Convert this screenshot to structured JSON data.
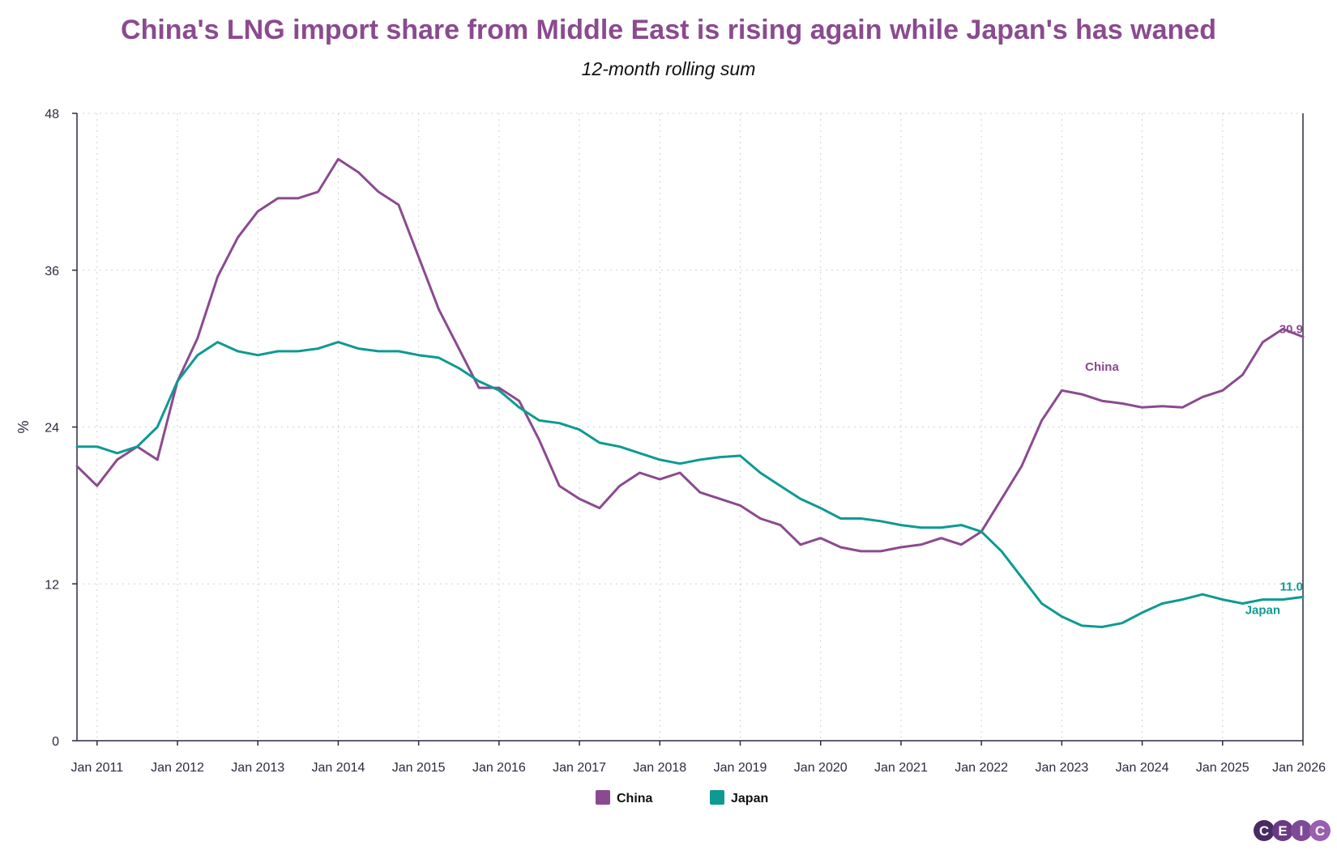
{
  "chart_data": {
    "type": "line",
    "title": "China's LNG import share from Middle East is rising again while Japan's has waned",
    "subtitle": "12-month rolling sum",
    "ylabel": "%",
    "xlabel": "",
    "ylim": [
      0,
      48
    ],
    "yticks": [
      0,
      12,
      24,
      36,
      48
    ],
    "xlim": [
      "2010-10",
      "2026-01"
    ],
    "x_tick_labels": [
      "Jan 2011",
      "Jan 2012",
      "Jan 2013",
      "Jan 2014",
      "Jan 2015",
      "Jan 2016",
      "Jan 2017",
      "Jan 2018",
      "Jan 2019",
      "Jan 2020",
      "Jan 2021",
      "Jan 2022",
      "Jan 2023",
      "Jan 2024",
      "Jan 2025",
      "Jan 2026"
    ],
    "grid": true,
    "legend_position": "bottom-center",
    "series": [
      {
        "name": "China",
        "color": "#8b4a8f",
        "inline_label": "China",
        "last_value_label": "30.9",
        "points": [
          [
            "2010-10",
            21.0
          ],
          [
            "2011-01",
            19.5
          ],
          [
            "2011-04",
            21.5
          ],
          [
            "2011-07",
            22.5
          ],
          [
            "2011-10",
            21.5
          ],
          [
            "2012-01",
            27.5
          ],
          [
            "2012-04",
            30.8
          ],
          [
            "2012-07",
            35.5
          ],
          [
            "2012-10",
            38.5
          ],
          [
            "2013-01",
            40.5
          ],
          [
            "2013-04",
            41.5
          ],
          [
            "2013-07",
            41.5
          ],
          [
            "2013-10",
            42.0
          ],
          [
            "2014-01",
            44.5
          ],
          [
            "2014-04",
            43.5
          ],
          [
            "2014-07",
            42.0
          ],
          [
            "2014-10",
            41.0
          ],
          [
            "2015-01",
            37.0
          ],
          [
            "2015-04",
            33.0
          ],
          [
            "2015-07",
            30.0
          ],
          [
            "2015-10",
            27.0
          ],
          [
            "2016-01",
            27.0
          ],
          [
            "2016-04",
            26.0
          ],
          [
            "2016-07",
            23.0
          ],
          [
            "2016-10",
            19.5
          ],
          [
            "2017-01",
            18.5
          ],
          [
            "2017-04",
            17.8
          ],
          [
            "2017-07",
            19.5
          ],
          [
            "2017-10",
            20.5
          ],
          [
            "2018-01",
            20.0
          ],
          [
            "2018-04",
            20.5
          ],
          [
            "2018-07",
            19.0
          ],
          [
            "2018-10",
            18.5
          ],
          [
            "2019-01",
            18.0
          ],
          [
            "2019-04",
            17.0
          ],
          [
            "2019-07",
            16.5
          ],
          [
            "2019-10",
            15.0
          ],
          [
            "2020-01",
            15.5
          ],
          [
            "2020-04",
            14.8
          ],
          [
            "2020-07",
            14.5
          ],
          [
            "2020-10",
            14.5
          ],
          [
            "2021-01",
            14.8
          ],
          [
            "2021-04",
            15.0
          ],
          [
            "2021-07",
            15.5
          ],
          [
            "2021-10",
            15.0
          ],
          [
            "2022-01",
            16.0
          ],
          [
            "2022-04",
            18.5
          ],
          [
            "2022-07",
            21.0
          ],
          [
            "2022-10",
            24.5
          ],
          [
            "2023-01",
            26.8
          ],
          [
            "2023-04",
            26.5
          ],
          [
            "2023-07",
            26.0
          ],
          [
            "2023-10",
            25.8
          ],
          [
            "2024-01",
            25.5
          ],
          [
            "2024-04",
            25.6
          ],
          [
            "2024-07",
            25.5
          ],
          [
            "2024-10",
            26.3
          ],
          [
            "2025-01",
            26.8
          ],
          [
            "2025-04",
            28.0
          ],
          [
            "2025-07",
            30.5
          ],
          [
            "2025-10",
            31.5
          ],
          [
            "2026-01",
            30.9
          ]
        ]
      },
      {
        "name": "Japan",
        "color": "#0d9a93",
        "inline_label": "Japan",
        "last_value_label": "11.0",
        "points": [
          [
            "2010-10",
            22.5
          ],
          [
            "2011-01",
            22.5
          ],
          [
            "2011-04",
            22.0
          ],
          [
            "2011-07",
            22.5
          ],
          [
            "2011-10",
            24.0
          ],
          [
            "2012-01",
            27.5
          ],
          [
            "2012-04",
            29.5
          ],
          [
            "2012-07",
            30.5
          ],
          [
            "2012-10",
            29.8
          ],
          [
            "2013-01",
            29.5
          ],
          [
            "2013-04",
            29.8
          ],
          [
            "2013-07",
            29.8
          ],
          [
            "2013-10",
            30.0
          ],
          [
            "2014-01",
            30.5
          ],
          [
            "2014-04",
            30.0
          ],
          [
            "2014-07",
            29.8
          ],
          [
            "2014-10",
            29.8
          ],
          [
            "2015-01",
            29.5
          ],
          [
            "2015-04",
            29.3
          ],
          [
            "2015-07",
            28.5
          ],
          [
            "2015-10",
            27.5
          ],
          [
            "2016-01",
            26.8
          ],
          [
            "2016-04",
            25.5
          ],
          [
            "2016-07",
            24.5
          ],
          [
            "2016-10",
            24.3
          ],
          [
            "2017-01",
            23.8
          ],
          [
            "2017-04",
            22.8
          ],
          [
            "2017-07",
            22.5
          ],
          [
            "2017-10",
            22.0
          ],
          [
            "2018-01",
            21.5
          ],
          [
            "2018-04",
            21.2
          ],
          [
            "2018-07",
            21.5
          ],
          [
            "2018-10",
            21.7
          ],
          [
            "2019-01",
            21.8
          ],
          [
            "2019-04",
            20.5
          ],
          [
            "2019-07",
            19.5
          ],
          [
            "2019-10",
            18.5
          ],
          [
            "2020-01",
            17.8
          ],
          [
            "2020-04",
            17.0
          ],
          [
            "2020-07",
            17.0
          ],
          [
            "2020-10",
            16.8
          ],
          [
            "2021-01",
            16.5
          ],
          [
            "2021-04",
            16.3
          ],
          [
            "2021-07",
            16.3
          ],
          [
            "2021-10",
            16.5
          ],
          [
            "2022-01",
            16.0
          ],
          [
            "2022-04",
            14.5
          ],
          [
            "2022-07",
            12.5
          ],
          [
            "2022-10",
            10.5
          ],
          [
            "2023-01",
            9.5
          ],
          [
            "2023-04",
            8.8
          ],
          [
            "2023-07",
            8.7
          ],
          [
            "2023-10",
            9.0
          ],
          [
            "2024-01",
            9.8
          ],
          [
            "2024-04",
            10.5
          ],
          [
            "2024-07",
            10.8
          ],
          [
            "2024-10",
            11.2
          ],
          [
            "2025-01",
            10.8
          ],
          [
            "2025-04",
            10.5
          ],
          [
            "2025-07",
            10.8
          ],
          [
            "2025-10",
            10.8
          ],
          [
            "2026-01",
            11.0
          ]
        ]
      }
    ]
  },
  "branding": {
    "logo_letters": [
      "C",
      "E",
      "I",
      "C"
    ],
    "logo_colors": [
      "#4a2a63",
      "#6b3a84",
      "#7e4a97",
      "#9a5fb0"
    ]
  }
}
